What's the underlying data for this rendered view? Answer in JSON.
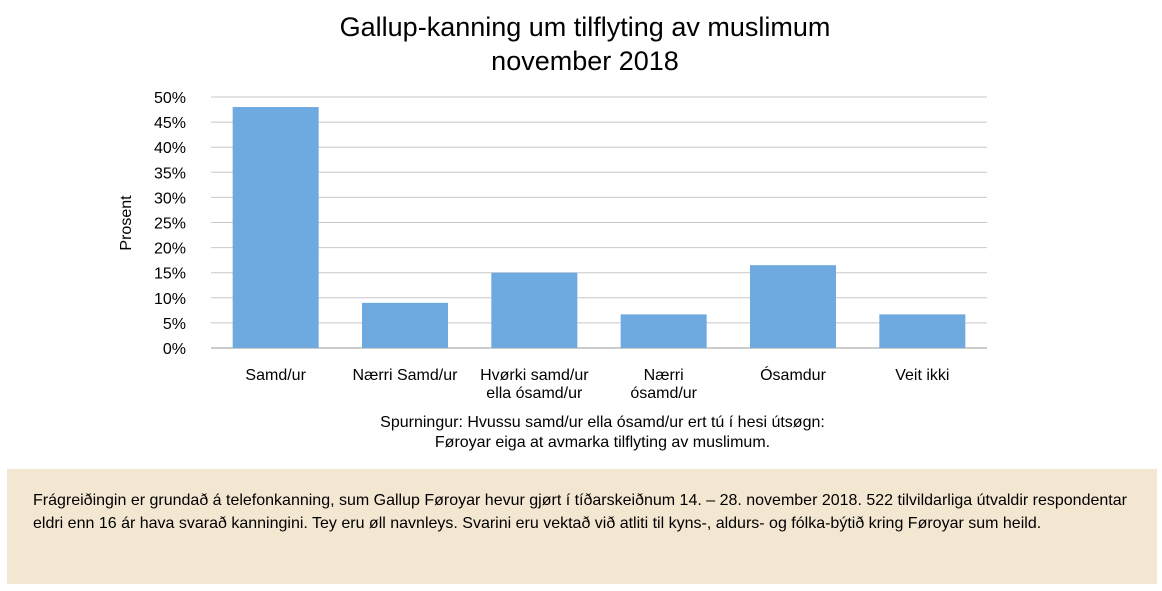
{
  "chart_data": {
    "type": "bar",
    "title": "Gallup-kanning um tilflyting av muslimum",
    "subtitle": "november 2018",
    "ylabel": "Prosent",
    "xlabel": "",
    "categories": [
      [
        "Samd/ur"
      ],
      [
        "Nærri Samd/ur"
      ],
      [
        "Hvørki samd/ur",
        "ella ósamd/ur"
      ],
      [
        "Nærri",
        "ósamd/ur"
      ],
      [
        "Ósamdur"
      ],
      [
        "Veit ikki"
      ]
    ],
    "values": [
      48,
      9,
      15,
      6.7,
      16.5,
      6.7
    ],
    "yticks": [
      "0%",
      "5%",
      "10%",
      "15%",
      "20%",
      "25%",
      "30%",
      "35%",
      "40%",
      "45%",
      "50%"
    ],
    "ylim": [
      0,
      50
    ],
    "ytick_step": 5,
    "grid": true,
    "bar_color": "#6eaadf"
  },
  "question": {
    "line1": "Spurningur: Hvussu samd/ur ella ósamd/ur ert tú í hesi útsøgn:",
    "line2": "Føroyar eiga at avmarka tilflyting av muslimum."
  },
  "note": {
    "text": "Frágreiðingin er grundað á telefonkanning, sum Gallup Føroyar hevur gjørt í tíðarskeiðnum 14. – 28. november 2018. 522 tilvildarliga útvaldir respondentar eldri enn 16 ár hava svarað kanningini. Tey eru øll navnleys. Svarini eru vektað við atliti til kyns-, aldurs- og fólka-býtið kring Føroyar sum heild."
  }
}
